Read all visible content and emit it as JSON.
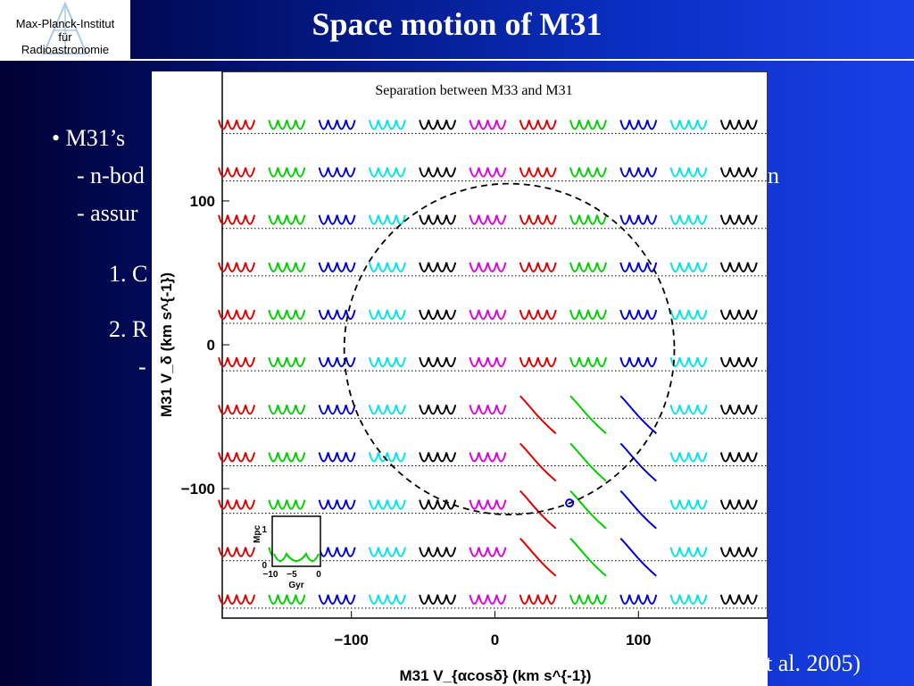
{
  "slide": {
    "title": "Space motion of M31",
    "logo": {
      "line1": "Max-Planck-Institut",
      "line2": "für",
      "line3": "Radioastronomie"
    },
    "body_lines": [
      "• M31’s",
      "- n-bod",
      "- assur",
      "1. C",
      "2. R",
      "-",
      "n"
    ],
    "citation_fragment": "t al. 2005)"
  },
  "colors": {
    "background": "#0a2fc4",
    "series": [
      "#e00000",
      "#00d000",
      "#0000dd",
      "#00e5e5",
      "#000000",
      "#e000e0"
    ]
  },
  "chart_data": {
    "type": "scatter",
    "title": "Separation between M33 and M31",
    "xlabel": "M31 V_{αcosδ} (km s^{-1})",
    "ylabel": "M31 V_δ (km s^{-1})",
    "xlim": [
      -190,
      190
    ],
    "ylim": [
      -190,
      190
    ],
    "xticks": [
      "−100",
      "0",
      "100"
    ],
    "yticks": [
      "100",
      "0",
      "−100"
    ],
    "grid": {
      "x": [
        -180,
        -145,
        -110,
        -75,
        -40,
        -5,
        30,
        65,
        100,
        135,
        170
      ],
      "y": [
        150,
        117,
        84,
        51,
        18,
        -15,
        -48,
        -81,
        -114,
        -147,
        -180
      ]
    },
    "circle": {
      "center": [
        10,
        -3
      ],
      "radius": 115,
      "style": "dashed"
    },
    "marker": {
      "x": 52,
      "y": -110,
      "color": "#0000dd"
    },
    "inset": {
      "xlabel": "Gyr",
      "ylabel": "Mpc",
      "xticks": [
        "−10",
        "−5",
        "0"
      ],
      "yticks": [
        "1",
        "0"
      ]
    }
  }
}
